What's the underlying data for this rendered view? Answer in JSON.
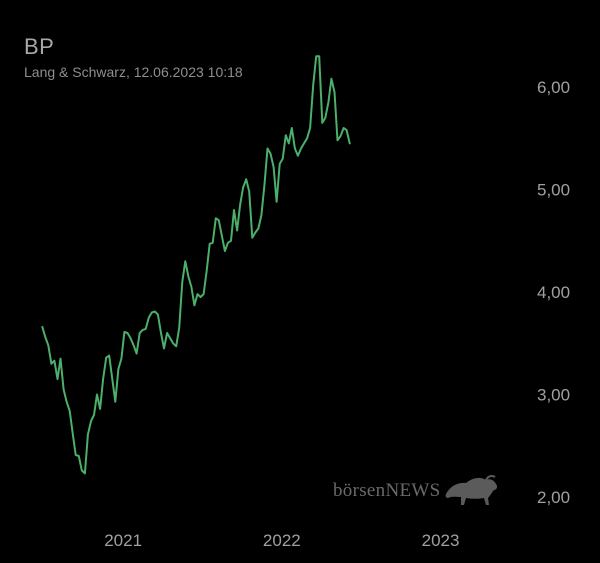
{
  "header": {
    "symbol": "BP",
    "source_line": "Lang & Schwarz, 12.06.2023 10:18"
  },
  "watermark": {
    "text": "börsenNEWS",
    "icon": "bull-icon"
  },
  "colors": {
    "background": "#000000",
    "line": "#4caf6a"
  },
  "chart_data": {
    "type": "line",
    "title": "",
    "xlabel": "",
    "ylabel": "",
    "x_ticks": [
      "2021",
      "2022",
      "2023"
    ],
    "y_ticks": [
      "2,00",
      "3,00",
      "4,00",
      "5,00",
      "6,00"
    ],
    "ylim": [
      2.0,
      6.35
    ],
    "xlim": [
      "2020-06-10",
      "2023-06-12"
    ],
    "y_axis_position": "right",
    "grid": false,
    "legend": "none",
    "series": [
      {
        "values": [
          [
            "2020-06-29",
            3.66
          ],
          [
            "2020-07-06",
            3.56
          ],
          [
            "2020-07-13",
            3.48
          ],
          [
            "2020-07-20",
            3.3
          ],
          [
            "2020-07-27",
            3.33
          ],
          [
            "2020-08-03",
            3.15
          ],
          [
            "2020-08-10",
            3.35
          ],
          [
            "2020-08-17",
            3.05
          ],
          [
            "2020-08-24",
            2.93
          ],
          [
            "2020-08-31",
            2.84
          ],
          [
            "2020-09-07",
            2.62
          ],
          [
            "2020-09-14",
            2.41
          ],
          [
            "2020-09-21",
            2.4
          ],
          [
            "2020-09-28",
            2.26
          ],
          [
            "2020-10-05",
            2.23
          ],
          [
            "2020-10-12",
            2.61
          ],
          [
            "2020-10-19",
            2.74
          ],
          [
            "2020-10-26",
            2.8
          ],
          [
            "2020-11-02",
            3.0
          ],
          [
            "2020-11-09",
            2.86
          ],
          [
            "2020-11-16",
            3.15
          ],
          [
            "2020-11-23",
            3.36
          ],
          [
            "2020-11-30",
            3.38
          ],
          [
            "2020-12-07",
            3.15
          ],
          [
            "2020-12-14",
            2.93
          ],
          [
            "2020-12-21",
            3.25
          ],
          [
            "2020-12-28",
            3.35
          ],
          [
            "2021-01-04",
            3.61
          ],
          [
            "2021-01-11",
            3.6
          ],
          [
            "2021-01-18",
            3.55
          ],
          [
            "2021-01-25",
            3.48
          ],
          [
            "2021-02-01",
            3.4
          ],
          [
            "2021-02-08",
            3.6
          ],
          [
            "2021-02-15",
            3.63
          ],
          [
            "2021-02-22",
            3.64
          ],
          [
            "2021-03-01",
            3.75
          ],
          [
            "2021-03-08",
            3.8
          ],
          [
            "2021-03-15",
            3.81
          ],
          [
            "2021-03-22",
            3.78
          ],
          [
            "2021-03-29",
            3.6
          ],
          [
            "2021-04-05",
            3.45
          ],
          [
            "2021-04-12",
            3.6
          ],
          [
            "2021-04-19",
            3.55
          ],
          [
            "2021-04-26",
            3.5
          ],
          [
            "2021-05-03",
            3.47
          ],
          [
            "2021-05-10",
            3.65
          ],
          [
            "2021-05-17",
            4.1
          ],
          [
            "2021-05-24",
            4.3
          ],
          [
            "2021-05-31",
            4.15
          ],
          [
            "2021-06-07",
            4.05
          ],
          [
            "2021-06-14",
            3.87
          ],
          [
            "2021-06-21",
            3.98
          ],
          [
            "2021-06-28",
            3.95
          ],
          [
            "2021-07-05",
            3.98
          ],
          [
            "2021-07-12",
            4.2
          ],
          [
            "2021-07-19",
            4.47
          ],
          [
            "2021-07-26",
            4.48
          ],
          [
            "2021-08-02",
            4.72
          ],
          [
            "2021-08-09",
            4.7
          ],
          [
            "2021-08-16",
            4.55
          ],
          [
            "2021-08-23",
            4.4
          ],
          [
            "2021-08-30",
            4.48
          ],
          [
            "2021-09-06",
            4.5
          ],
          [
            "2021-09-13",
            4.8
          ],
          [
            "2021-09-20",
            4.6
          ],
          [
            "2021-09-27",
            4.85
          ],
          [
            "2021-10-04",
            5.02
          ],
          [
            "2021-10-11",
            5.1
          ],
          [
            "2021-10-18",
            4.98
          ],
          [
            "2021-10-25",
            4.53
          ],
          [
            "2021-11-01",
            4.58
          ],
          [
            "2021-11-08",
            4.62
          ],
          [
            "2021-11-15",
            4.75
          ],
          [
            "2021-11-22",
            5.05
          ],
          [
            "2021-11-29",
            5.4
          ],
          [
            "2021-12-06",
            5.35
          ],
          [
            "2021-12-13",
            5.22
          ],
          [
            "2021-12-20",
            4.88
          ],
          [
            "2021-12-27",
            5.25
          ],
          [
            "2022-01-03",
            5.3
          ],
          [
            "2022-01-10",
            5.53
          ],
          [
            "2022-01-17",
            5.45
          ],
          [
            "2022-01-24",
            5.6
          ],
          [
            "2022-01-31",
            5.4
          ],
          [
            "2022-02-07",
            5.33
          ],
          [
            "2022-02-14",
            5.4
          ],
          [
            "2022-02-21",
            5.45
          ],
          [
            "2022-02-28",
            5.5
          ],
          [
            "2022-03-07",
            5.6
          ],
          [
            "2022-03-14",
            6.02
          ],
          [
            "2022-03-21",
            6.3
          ],
          [
            "2022-03-28",
            6.3
          ],
          [
            "2022-04-04",
            5.65
          ],
          [
            "2022-04-11",
            5.7
          ],
          [
            "2022-04-18",
            5.85
          ],
          [
            "2022-04-25",
            6.08
          ],
          [
            "2022-05-02",
            5.95
          ],
          [
            "2022-05-09",
            5.48
          ],
          [
            "2022-05-16",
            5.52
          ],
          [
            "2022-05-23",
            5.6
          ],
          [
            "2022-05-30",
            5.58
          ],
          [
            "2022-06-06",
            5.45
          ]
        ]
      }
    ]
  }
}
